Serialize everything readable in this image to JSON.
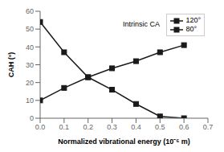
{
  "chart_data": {
    "type": "line",
    "x": [
      0,
      0.1,
      0.2,
      0.3,
      0.4,
      0.5,
      0.6
    ],
    "series": [
      {
        "name": "120°",
        "color": "#1a1a1a",
        "marker": "square",
        "values": [
          54,
          37,
          23,
          16,
          8,
          1,
          0
        ]
      },
      {
        "name": "80°",
        "color": "#1a1a1a",
        "marker": "square",
        "values": [
          10,
          17,
          23,
          28,
          32,
          37,
          41
        ]
      }
    ],
    "xlabel": "Normalized vibrational energy (10⁻⁶ m)",
    "ylabel": "CAH (°)",
    "xlim": [
      0,
      0.7
    ],
    "ylim": [
      0,
      60
    ],
    "xticks": [
      {
        "value": 0,
        "label": "0.0"
      },
      0.1,
      0.2,
      0.3,
      0.4,
      0.5,
      0.6,
      0.7
    ],
    "yticks": [
      0,
      10,
      20,
      30,
      40,
      50,
      60
    ],
    "grid": false,
    "legend": "upper right",
    "annotation": "Intrinsic CA"
  }
}
